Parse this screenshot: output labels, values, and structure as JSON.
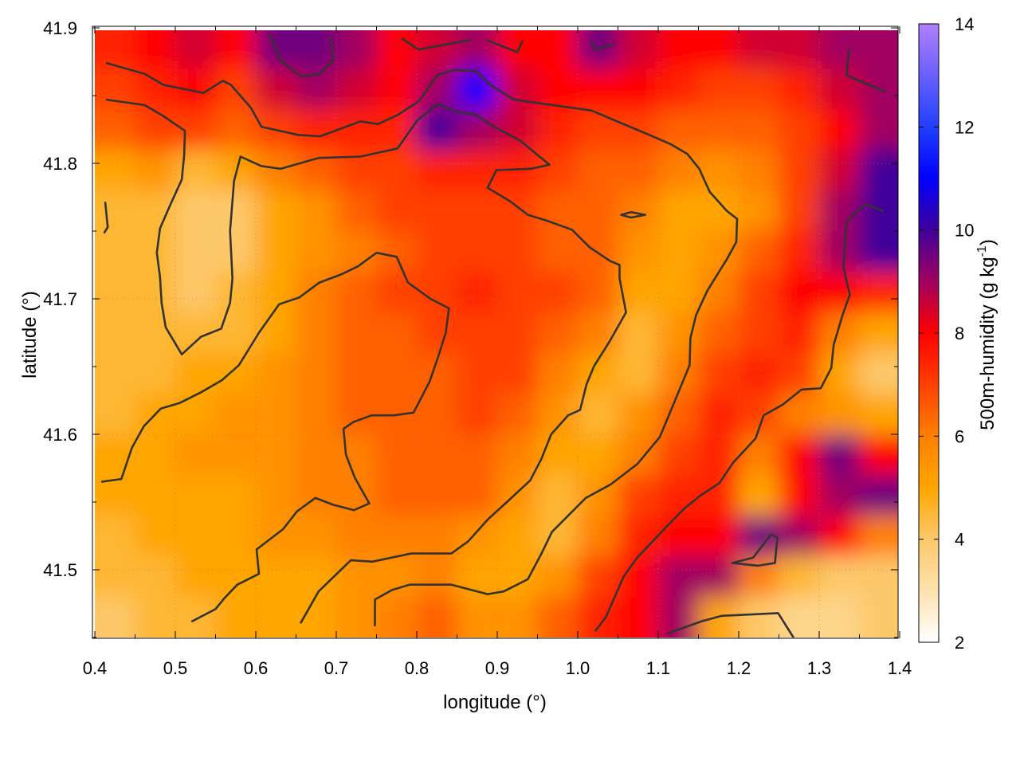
{
  "chart_data": {
    "type": "heatmap",
    "xlabel": "longitude (°)",
    "ylabel": "latitude (°)",
    "colorbar_label": "500m-humidity (g kg",
    "colorbar_label_sup": "-1",
    "colorbar_label_end": ")",
    "xlim": [
      0.4,
      1.4
    ],
    "ylim": [
      41.45,
      41.9
    ],
    "clim": [
      2,
      14
    ],
    "grid": true,
    "xticks": [
      "0.4",
      "0.5",
      "0.6",
      "0.7",
      "0.8",
      "0.9",
      "1.0",
      "1.1",
      "1.2",
      "1.3",
      "1.4"
    ],
    "yticks": [
      "41.5",
      "41.6",
      "41.7",
      "41.8",
      "41.9"
    ],
    "cticks": [
      "2",
      "4",
      "6",
      "8",
      "10",
      "12",
      "14"
    ],
    "colormap": [
      [
        2,
        "#ffffff"
      ],
      [
        3,
        "#fde2ad"
      ],
      [
        4,
        "#fdc86a"
      ],
      [
        5,
        "#ffa500"
      ],
      [
        6,
        "#ff8000"
      ],
      [
        7,
        "#ff4000"
      ],
      [
        8,
        "#ff0000"
      ],
      [
        9,
        "#a00060"
      ],
      [
        10,
        "#40009a"
      ],
      [
        11,
        "#0000ff"
      ],
      [
        12,
        "#2040ff"
      ],
      [
        13,
        "#6a60ff"
      ],
      [
        14,
        "#b080ff"
      ]
    ],
    "contour_color": "#333333",
    "grid_lon": [
      0.425,
      0.475,
      0.525,
      0.575,
      0.625,
      0.675,
      0.725,
      0.775,
      0.825,
      0.875,
      0.925,
      0.975,
      1.025,
      1.075,
      1.125,
      1.175,
      1.225,
      1.275,
      1.325,
      1.375
    ],
    "grid_lat": [
      41.885,
      41.855,
      41.825,
      41.795,
      41.765,
      41.735,
      41.705,
      41.675,
      41.645,
      41.615,
      41.585,
      41.555,
      41.525,
      41.495,
      41.465
    ],
    "values": [
      [
        7.5,
        8,
        8.5,
        8,
        9.5,
        9.5,
        9,
        8,
        8.5,
        9,
        8,
        8,
        9.5,
        8.5,
        8,
        8,
        8.5,
        8.5,
        9,
        9
      ],
      [
        7,
        7.5,
        8,
        7,
        8.5,
        9,
        8.5,
        8,
        9,
        11,
        8.5,
        8,
        8,
        8,
        7.5,
        7,
        7,
        7.5,
        8.5,
        9
      ],
      [
        6.5,
        7,
        7,
        6.5,
        7,
        7.5,
        7.5,
        7.5,
        10,
        9,
        8.5,
        7.5,
        7,
        7,
        6.5,
        6.5,
        6.5,
        7,
        8,
        9
      ],
      [
        5,
        5.5,
        4.5,
        5,
        6,
        6.5,
        7,
        7,
        7.5,
        7.5,
        7.5,
        7,
        6.5,
        6.5,
        6,
        5.5,
        6,
        7,
        8.5,
        10
      ],
      [
        4.5,
        4.5,
        4,
        4,
        5,
        5.5,
        6.5,
        7,
        7,
        7,
        7,
        6.5,
        6.5,
        6,
        5,
        5,
        5.5,
        7,
        9,
        10
      ],
      [
        4.5,
        4.5,
        4,
        4,
        5,
        5.5,
        6,
        6.5,
        7,
        7,
        7,
        6.5,
        6.5,
        5.5,
        5,
        5.5,
        6.5,
        7.5,
        9,
        10
      ],
      [
        4.5,
        4.5,
        4,
        4.5,
        5,
        6,
        6.5,
        7,
        7,
        7.5,
        7,
        7,
        6.5,
        5,
        5,
        6,
        7,
        8,
        8,
        7.5
      ],
      [
        4.5,
        4.5,
        4.5,
        4.5,
        5,
        6,
        6.5,
        6.5,
        7,
        7,
        7,
        6.5,
        6,
        4.5,
        5.5,
        6.5,
        7,
        7.5,
        6,
        5
      ],
      [
        4.5,
        4.5,
        5,
        5,
        5.5,
        6,
        6.5,
        6.5,
        6.5,
        7,
        7,
        6,
        5,
        4.5,
        6,
        7,
        7.5,
        7,
        5,
        4
      ],
      [
        4.5,
        5,
        5,
        5.5,
        5.5,
        6,
        6.5,
        6.5,
        6.5,
        7,
        6.5,
        5.5,
        4.5,
        5.5,
        6.5,
        7.5,
        7,
        6,
        5.5,
        5
      ],
      [
        5,
        5,
        5.5,
        5.5,
        5.5,
        6,
        6,
        6.5,
        6.5,
        6.5,
        6,
        5,
        5,
        6,
        7,
        7.5,
        6,
        8,
        9.5,
        8
      ],
      [
        5,
        5,
        5,
        5,
        5.5,
        6,
        6,
        6.5,
        6.5,
        6.5,
        5.5,
        4.5,
        5.5,
        7,
        7.5,
        7.5,
        5,
        8,
        9,
        9.5
      ],
      [
        4.5,
        5,
        5,
        5,
        5.5,
        5.5,
        6,
        6,
        6,
        5.5,
        5,
        4.5,
        6,
        7.5,
        8,
        8,
        9.5,
        9,
        8,
        6
      ],
      [
        4.5,
        4.5,
        5,
        5,
        5,
        5,
        5.5,
        5.5,
        6,
        5,
        5,
        5.5,
        7,
        8,
        9,
        9,
        6,
        4.5,
        4,
        4
      ],
      [
        4,
        4.5,
        4.5,
        5,
        5,
        5,
        5.5,
        6,
        6.5,
        5.5,
        5.5,
        6.5,
        7.5,
        8,
        9,
        5,
        4,
        3.5,
        3.5,
        4
      ]
    ],
    "contours": [
      [
        [
          0.415,
          41.874
        ],
        [
          0.462,
          41.866
        ],
        [
          0.485,
          41.858
        ],
        [
          0.535,
          41.852
        ],
        [
          0.559,
          41.861
        ],
        [
          0.569,
          41.858
        ],
        [
          0.594,
          41.841
        ],
        [
          0.607,
          41.827
        ],
        [
          0.653,
          41.821
        ],
        [
          0.68,
          41.82
        ],
        [
          0.73,
          41.831
        ],
        [
          0.752,
          41.829
        ],
        [
          0.777,
          41.836
        ],
        [
          0.803,
          41.846
        ],
        [
          0.825,
          41.865
        ],
        [
          0.847,
          41.869
        ],
        [
          0.874,
          41.868
        ],
        [
          0.891,
          41.858
        ],
        [
          0.921,
          41.847
        ],
        [
          1.017,
          41.839
        ],
        [
          1.089,
          41.821
        ],
        [
          1.116,
          41.814
        ],
        [
          1.136,
          41.807
        ],
        [
          1.151,
          41.796
        ],
        [
          1.164,
          41.779
        ],
        [
          1.185,
          41.765
        ],
        [
          1.198,
          41.759
        ],
        [
          1.197,
          41.742
        ],
        [
          1.185,
          41.729
        ],
        [
          1.161,
          41.706
        ],
        [
          1.147,
          41.688
        ],
        [
          1.14,
          41.671
        ],
        [
          1.139,
          41.651
        ],
        [
          1.116,
          41.618
        ],
        [
          1.102,
          41.598
        ],
        [
          1.074,
          41.578
        ],
        [
          1.041,
          41.563
        ],
        [
          1.01,
          41.553
        ],
        [
          0.968,
          41.528
        ],
        [
          0.955,
          41.512
        ],
        [
          0.938,
          41.493
        ],
        [
          0.908,
          41.484
        ],
        [
          0.888,
          41.482
        ],
        [
          0.843,
          41.489
        ],
        [
          0.791,
          41.489
        ],
        [
          0.769,
          41.485
        ],
        [
          0.748,
          41.478
        ],
        [
          0.748,
          41.459
        ]
      ],
      [
        [
          0.415,
          41.847
        ],
        [
          0.462,
          41.843
        ],
        [
          0.485,
          41.835
        ],
        [
          0.512,
          41.824
        ],
        [
          0.511,
          41.806
        ],
        [
          0.508,
          41.788
        ],
        [
          0.495,
          41.771
        ],
        [
          0.481,
          41.752
        ],
        [
          0.477,
          41.734
        ],
        [
          0.481,
          41.716
        ],
        [
          0.483,
          41.697
        ],
        [
          0.488,
          41.679
        ],
        [
          0.508,
          41.659
        ],
        [
          0.532,
          41.672
        ],
        [
          0.557,
          41.678
        ],
        [
          0.568,
          41.697
        ],
        [
          0.571,
          41.715
        ],
        [
          0.568,
          41.75
        ],
        [
          0.573,
          41.787
        ],
        [
          0.581,
          41.805
        ],
        [
          0.607,
          41.798
        ],
        [
          0.631,
          41.796
        ],
        [
          0.678,
          41.804
        ],
        [
          0.73,
          41.805
        ],
        [
          0.776,
          41.811
        ],
        [
          0.801,
          41.832
        ],
        [
          0.826,
          41.844
        ],
        [
          0.849,
          41.838
        ],
        [
          0.873,
          41.836
        ],
        [
          0.896,
          41.827
        ],
        [
          0.928,
          41.817
        ],
        [
          0.965,
          41.799
        ],
        [
          0.942,
          41.796
        ],
        [
          0.899,
          41.795
        ],
        [
          0.888,
          41.782
        ],
        [
          0.916,
          41.772
        ],
        [
          0.938,
          41.762
        ],
        [
          0.96,
          41.758
        ],
        [
          0.993,
          41.751
        ],
        [
          1.015,
          41.738
        ],
        [
          1.04,
          41.728
        ],
        [
          1.052,
          41.725
        ],
        [
          1.052,
          41.715
        ],
        [
          1.06,
          41.69
        ],
        [
          1.04,
          41.669
        ],
        [
          1.02,
          41.65
        ],
        [
          1.011,
          41.637
        ],
        [
          1.003,
          41.618
        ],
        [
          0.988,
          41.614
        ],
        [
          0.967,
          41.6
        ],
        [
          0.955,
          41.582
        ],
        [
          0.941,
          41.566
        ],
        [
          0.912,
          41.55
        ],
        [
          0.888,
          41.537
        ],
        [
          0.864,
          41.521
        ],
        [
          0.843,
          41.512
        ],
        [
          0.793,
          41.512
        ],
        [
          0.745,
          41.506
        ],
        [
          0.718,
          41.507
        ],
        [
          0.678,
          41.484
        ],
        [
          0.656,
          41.461
        ]
      ],
      [
        [
          0.409,
          41.565
        ],
        [
          0.433,
          41.567
        ],
        [
          0.446,
          41.59
        ],
        [
          0.461,
          41.606
        ],
        [
          0.482,
          41.619
        ],
        [
          0.505,
          41.623
        ],
        [
          0.532,
          41.631
        ],
        [
          0.558,
          41.64
        ],
        [
          0.579,
          41.651
        ],
        [
          0.604,
          41.675
        ],
        [
          0.629,
          41.696
        ],
        [
          0.654,
          41.701
        ],
        [
          0.679,
          41.712
        ],
        [
          0.706,
          41.718
        ],
        [
          0.727,
          41.724
        ],
        [
          0.75,
          41.734
        ],
        [
          0.775,
          41.731
        ],
        [
          0.789,
          41.712
        ],
        [
          0.817,
          41.7
        ],
        [
          0.84,
          41.693
        ],
        [
          0.836,
          41.675
        ],
        [
          0.827,
          41.658
        ],
        [
          0.816,
          41.639
        ],
        [
          0.796,
          41.616
        ],
        [
          0.772,
          41.614
        ],
        [
          0.744,
          41.614
        ],
        [
          0.721,
          41.609
        ],
        [
          0.709,
          41.604
        ],
        [
          0.712,
          41.585
        ],
        [
          0.723,
          41.568
        ],
        [
          0.741,
          41.549
        ],
        [
          0.722,
          41.544
        ],
        [
          0.696,
          41.548
        ],
        [
          0.674,
          41.553
        ],
        [
          0.651,
          41.543
        ],
        [
          0.634,
          41.53
        ],
        [
          0.601,
          41.515
        ],
        [
          0.604,
          41.497
        ],
        [
          0.577,
          41.489
        ],
        [
          0.561,
          41.479
        ],
        [
          0.55,
          41.471
        ],
        [
          0.521,
          41.462
        ]
      ],
      [
        [
          1.022,
          41.455
        ],
        [
          1.035,
          41.465
        ],
        [
          1.057,
          41.495
        ],
        [
          1.074,
          41.509
        ],
        [
          1.109,
          41.531
        ],
        [
          1.132,
          41.545
        ],
        [
          1.153,
          41.555
        ],
        [
          1.176,
          41.564
        ],
        [
          1.193,
          41.579
        ],
        [
          1.221,
          41.597
        ],
        [
          1.231,
          41.614
        ],
        [
          1.255,
          41.622
        ],
        [
          1.278,
          41.633
        ],
        [
          1.302,
          41.634
        ],
        [
          1.315,
          41.649
        ],
        [
          1.318,
          41.666
        ],
        [
          1.329,
          41.688
        ],
        [
          1.338,
          41.703
        ],
        [
          1.33,
          41.724
        ],
        [
          1.334,
          41.757
        ],
        [
          1.357,
          41.77
        ],
        [
          1.379,
          41.765
        ]
      ],
      [
        [
          1.112,
          41.453
        ],
        [
          1.154,
          41.462
        ],
        [
          1.179,
          41.466
        ],
        [
          1.249,
          41.468
        ],
        [
          1.268,
          41.45
        ]
      ],
      [
        [
          1.192,
          41.505
        ],
        [
          1.218,
          41.509
        ],
        [
          1.24,
          41.526
        ],
        [
          1.248,
          41.524
        ],
        [
          1.245,
          41.505
        ],
        [
          1.224,
          41.503
        ],
        [
          1.192,
          41.505
        ]
      ],
      [
        [
          0.617,
          41.895
        ],
        [
          0.631,
          41.876
        ],
        [
          0.656,
          41.864
        ],
        [
          0.68,
          41.866
        ],
        [
          0.696,
          41.876
        ],
        [
          0.693,
          41.893
        ]
      ],
      [
        [
          0.782,
          41.892
        ],
        [
          0.802,
          41.884
        ],
        [
          0.866,
          41.891
        ]
      ],
      [
        [
          0.887,
          41.891
        ],
        [
          0.925,
          41.882
        ],
        [
          0.931,
          41.89
        ]
      ],
      [
        [
          1.017,
          41.89
        ],
        [
          1.022,
          41.884
        ],
        [
          1.044,
          41.888
        ]
      ],
      [
        [
          1.337,
          41.884
        ],
        [
          1.334,
          41.865
        ],
        [
          1.382,
          41.853
        ]
      ],
      [
        [
          0.413,
          41.771
        ],
        [
          0.416,
          41.753
        ],
        [
          0.412,
          41.749
        ]
      ],
      [
        [
          1.054,
          41.762
        ],
        [
          1.066,
          41.764
        ],
        [
          1.084,
          41.762
        ],
        [
          1.066,
          41.76
        ],
        [
          1.054,
          41.762
        ]
      ]
    ]
  }
}
